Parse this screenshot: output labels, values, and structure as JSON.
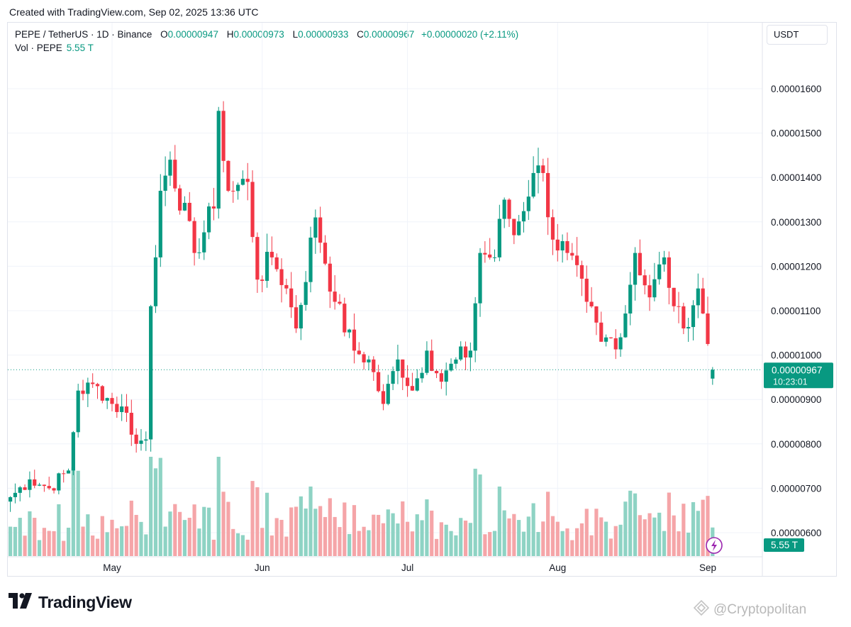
{
  "header": {
    "created_text": "Created with TradingView.com, Sep 02, 2025 13:36 UTC"
  },
  "legend": {
    "symbol": "PEPE / TetherUS · 1D · Binance",
    "open_label": "O",
    "open": "0.00000947",
    "high_label": "H",
    "high": "0.00000973",
    "low_label": "L",
    "low": "0.00000933",
    "close_label": "C",
    "close": "0.00000967",
    "change": "+0.00000020 (+2.11%)",
    "vol_label": "Vol · PEPE",
    "vol_value": "5.55 T"
  },
  "currency_button": "USDT",
  "price_badge": {
    "price": "0.00000967",
    "countdown": "10:23:01"
  },
  "volume_badge": "5.55 T",
  "brand": {
    "name": "TradingView"
  },
  "watermark": "@Cryptopolitan",
  "icons": {
    "logo": "tradingview-logo-icon",
    "lightning": "lightning-icon",
    "watermark": "cryptopolitan-logo-icon"
  },
  "colors": {
    "up": "#089981",
    "down": "#f23645",
    "up_vol": "#8ed3c4",
    "down_vol": "#f5a5a8"
  },
  "chart_data": {
    "type": "candlestick",
    "yaxis": {
      "ticks": [
        6e-06,
        7e-06,
        8e-06,
        9e-06,
        1e-05,
        1.1e-05,
        1.2e-05,
        1.3e-05,
        1.4e-05,
        1.5e-05,
        1.6e-05
      ],
      "tick_labels": [
        "0.00000600",
        "0.00000700",
        "0.00000800",
        "0.00000900",
        "0.00001000",
        "0.00001100",
        "0.00001200",
        "0.00001300",
        "0.00001400",
        "0.00001500",
        "0.00001600"
      ]
    },
    "xaxis": {
      "labels": [
        "May",
        "Jun",
        "Jul",
        "Aug",
        "Sep"
      ]
    },
    "grid": true,
    "last_price": 9.67e-06,
    "anchors": [
      {
        "date": "2025-04-10",
        "close": 6.8e-06
      },
      {
        "date": "2025-04-14",
        "close": 7.2e-06
      },
      {
        "date": "2025-04-18",
        "close": 7e-06
      },
      {
        "date": "2025-04-22",
        "close": 7.4e-06
      },
      {
        "date": "2025-04-24",
        "close": 9.2e-06
      },
      {
        "date": "2025-04-28",
        "close": 9.3e-06
      },
      {
        "date": "2025-05-01",
        "close": 8.9e-06
      },
      {
        "date": "2025-05-04",
        "close": 8.7e-06
      },
      {
        "date": "2025-05-06",
        "close": 8e-06
      },
      {
        "date": "2025-05-08",
        "close": 8.1e-06
      },
      {
        "date": "2025-05-09",
        "close": 1.11e-05
      },
      {
        "date": "2025-05-10",
        "close": 1.22e-05
      },
      {
        "date": "2025-05-11",
        "close": 1.37e-05
      },
      {
        "date": "2025-05-13",
        "close": 1.44e-05
      },
      {
        "date": "2025-05-18",
        "close": 1.23e-05
      },
      {
        "date": "2025-05-22",
        "close": 1.33e-05
      },
      {
        "date": "2025-05-23",
        "close": 1.55e-05
      },
      {
        "date": "2025-05-25",
        "close": 1.37e-05
      },
      {
        "date": "2025-05-29",
        "close": 1.39e-05
      },
      {
        "date": "2025-05-31",
        "close": 1.17e-05
      },
      {
        "date": "2025-06-03",
        "close": 1.22e-05
      },
      {
        "date": "2025-06-06",
        "close": 1.15e-05
      },
      {
        "date": "2025-06-08",
        "close": 1.06e-05
      },
      {
        "date": "2025-06-12",
        "close": 1.31e-05
      },
      {
        "date": "2025-06-16",
        "close": 1.12e-05
      },
      {
        "date": "2025-06-20",
        "close": 1.01e-05
      },
      {
        "date": "2025-06-23",
        "close": 9.9e-06
      },
      {
        "date": "2025-06-26",
        "close": 8.9e-06
      },
      {
        "date": "2025-06-29",
        "close": 9.9e-06
      },
      {
        "date": "2025-07-02",
        "close": 9.2e-06
      },
      {
        "date": "2025-07-05",
        "close": 1.01e-05
      },
      {
        "date": "2025-07-08",
        "close": 9.4e-06
      },
      {
        "date": "2025-07-11",
        "close": 9.9e-06
      },
      {
        "date": "2025-07-14",
        "close": 1.01e-05
      },
      {
        "date": "2025-07-16",
        "close": 1.23e-05
      },
      {
        "date": "2025-07-19",
        "close": 1.22e-05
      },
      {
        "date": "2025-07-21",
        "close": 1.35e-05
      },
      {
        "date": "2025-07-23",
        "close": 1.27e-05
      },
      {
        "date": "2025-07-27",
        "close": 1.41e-05
      },
      {
        "date": "2025-07-29",
        "close": 1.41e-05
      },
      {
        "date": "2025-07-31",
        "close": 1.26e-05
      },
      {
        "date": "2025-08-03",
        "close": 1.23e-05
      },
      {
        "date": "2025-08-07",
        "close": 1.12e-05
      },
      {
        "date": "2025-08-10",
        "close": 1.03e-05
      },
      {
        "date": "2025-08-14",
        "close": 1.04e-05
      },
      {
        "date": "2025-08-17",
        "close": 1.23e-05
      },
      {
        "date": "2025-08-20",
        "close": 1.13e-05
      },
      {
        "date": "2025-08-23",
        "close": 1.22e-05
      },
      {
        "date": "2025-08-25",
        "close": 1.11e-05
      },
      {
        "date": "2025-08-27",
        "close": 1.06e-05
      },
      {
        "date": "2025-08-30",
        "close": 1.15e-05
      },
      {
        "date": "2025-09-02",
        "close": 9.67e-06
      }
    ]
  }
}
